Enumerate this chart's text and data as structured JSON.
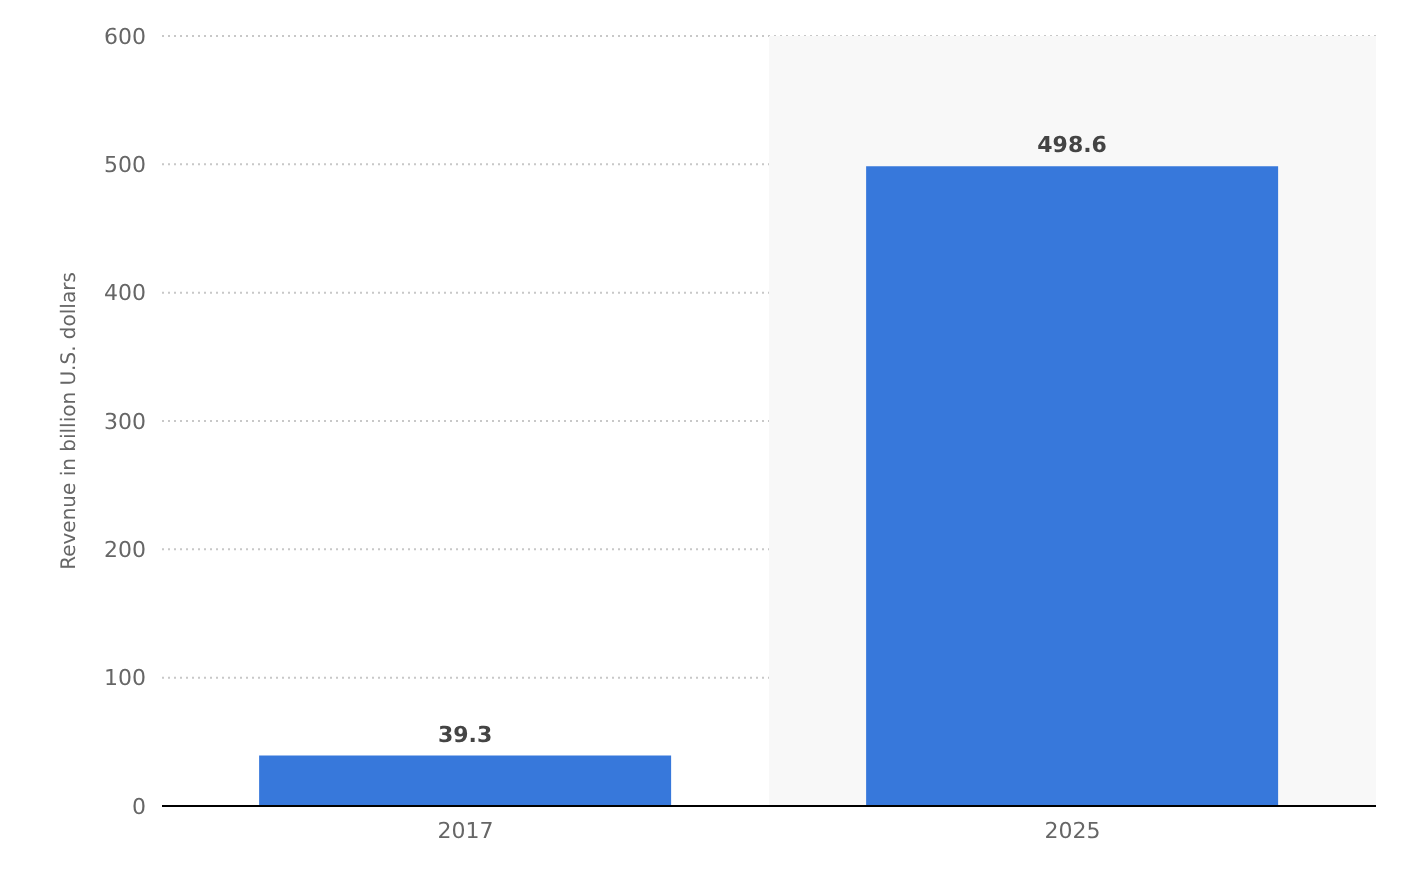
{
  "chart_data": {
    "type": "bar",
    "categories": [
      "2017",
      "2025"
    ],
    "values": [
      39.3,
      498.6
    ],
    "color": "#3778db",
    "ylabel": "Revenue in billion U.S. dollars",
    "ylim": [
      0,
      600
    ],
    "yticks": [
      0,
      100,
      200,
      300,
      400,
      500,
      600
    ],
    "grid": "y",
    "data_labels": true,
    "legend": false,
    "bands": [
      {
        "axis": "x",
        "from": "2025",
        "to": "2025",
        "color": "#f8f8f8"
      }
    ]
  }
}
